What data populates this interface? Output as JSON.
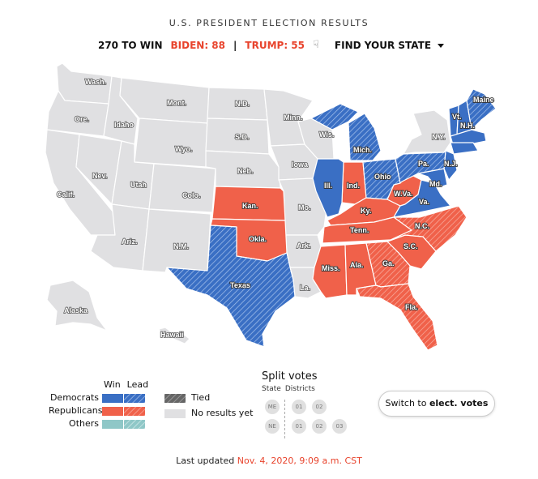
{
  "header": {
    "title": "U.S. PRESIDENT ELECTION RESULTS",
    "win_label": "270 TO WIN",
    "biden_label": "BIDEN: 88",
    "separator": "|",
    "trump_label": "TRUMP: 55",
    "hand_icon": "pointer-hand-icon",
    "find_state_label": "FIND YOUR STATE"
  },
  "colors": {
    "dem": "#3a6fc4",
    "rep": "#f0614a",
    "other": "#8fc7c7",
    "no_results": "#e0e0e2",
    "tied": "#666666",
    "accent_red": "#e8432c"
  },
  "states": {
    "Wash.": "none",
    "Ore.": "none",
    "Idaho": "none",
    "Mont.": "none",
    "Wyo.": "none",
    "N.D.": "none",
    "S.D.": "none",
    "Neb.": "none",
    "Minn.": "none",
    "Iowa": "none",
    "Wis.": "none",
    "Mich.": "dem-lead",
    "Ohio": "dem-lead",
    "Pa.": "dem-lead",
    "N.Y.": "none",
    "Maine": "dem-lead",
    "Vt.": "dem-win",
    "N.H.": "dem-win",
    "N.J.": "dem-win",
    "Md.": "dem-win",
    "Va.": "dem-win",
    "W.Va.": "rep-win",
    "Ky.": "rep-win",
    "Ind.": "rep-win",
    "Ill.": "dem-win",
    "Mo.": "none",
    "Kan.": "rep-win",
    "Okla.": "rep-win",
    "Texas": "dem-lead",
    "N.M.": "none",
    "Ariz.": "none",
    "Nev.": "none",
    "Utah": "none",
    "Colo.": "none",
    "Calif.": "none",
    "Ark.": "none",
    "La.": "none",
    "Tenn.": "rep-win",
    "Miss.": "rep-win",
    "Ala.": "rep-win",
    "Ga.": "rep-lead",
    "S.C.": "rep-win",
    "N.C.": "rep-lead",
    "Fla.": "rep-lead",
    "Alaska": "none",
    "Hawaii": "none"
  },
  "legend": {
    "win_header": "Win",
    "lead_header": "Lead",
    "democrats": "Democrats",
    "republicans": "Republicans",
    "others": "Others",
    "tied": "Tied",
    "no_results": "No results yet"
  },
  "split_votes": {
    "title": "Split votes",
    "state_label": "State",
    "districts_label": "Districts",
    "me": "ME",
    "ne": "NE",
    "me_districts": [
      "01",
      "02"
    ],
    "ne_districts": [
      "01",
      "02",
      "03"
    ]
  },
  "switch_button": {
    "prefix": "Switch to ",
    "bold": "elect. votes"
  },
  "footer": {
    "label": "Last updated ",
    "timestamp": "Nov. 4, 2020, 9:09 a.m. CST"
  }
}
